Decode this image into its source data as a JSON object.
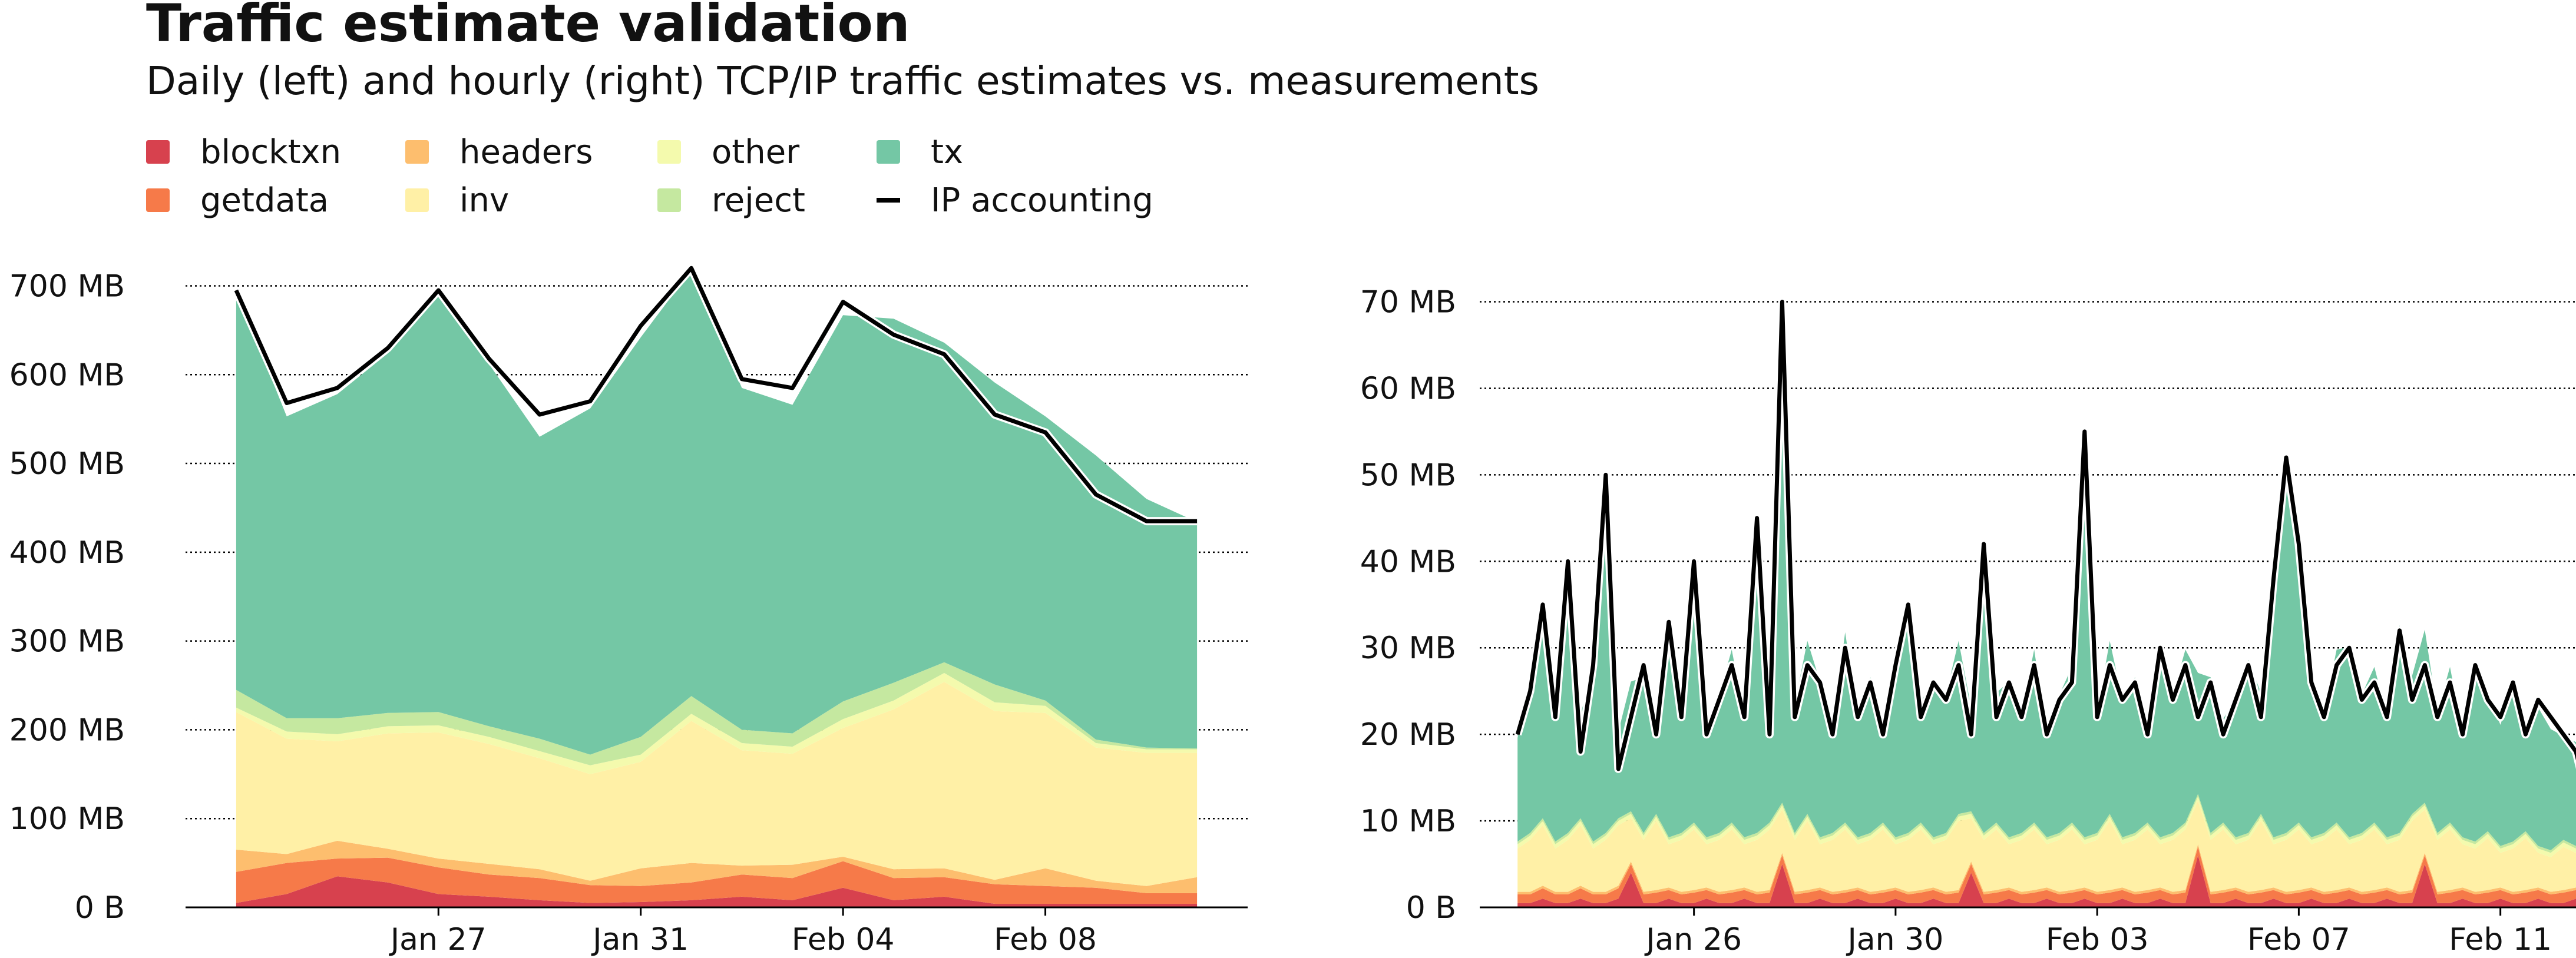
{
  "title": "Traffic estimate validation",
  "subtitle": "Daily (left) and hourly (right) TCP/IP traffic estimates vs. measurements",
  "legend": [
    {
      "label": "blocktxn",
      "color": "#d7414e",
      "kind": "area"
    },
    {
      "label": "headers",
      "color": "#fdbe6e",
      "kind": "area"
    },
    {
      "label": "other",
      "color": "#f4faad",
      "kind": "area"
    },
    {
      "label": "tx",
      "color": "#74c7a5",
      "kind": "area"
    },
    {
      "label": "getdata",
      "color": "#f67a49",
      "kind": "area"
    },
    {
      "label": "inv",
      "color": "#fff0a6",
      "kind": "area"
    },
    {
      "label": "reject",
      "color": "#c5e8a0",
      "kind": "area"
    },
    {
      "label": "IP accounting",
      "color": "#000000",
      "kind": "line"
    }
  ],
  "chart_data": [
    {
      "type": "area",
      "stacked": true,
      "x_type": "date",
      "x": [
        "2024-01-23",
        "2024-01-24",
        "2024-01-25",
        "2024-01-26",
        "2024-01-27",
        "2024-01-28",
        "2024-01-29",
        "2024-01-30",
        "2024-01-31",
        "2024-02-01",
        "2024-02-02",
        "2024-02-03",
        "2024-02-04",
        "2024-02-05",
        "2024-02-06",
        "2024-02-07",
        "2024-02-08",
        "2024-02-09",
        "2024-02-10",
        "2024-02-11"
      ],
      "xlim": [
        "2024-01-22",
        "2024-02-12"
      ],
      "x_ticks": [
        "2024-01-27",
        "2024-01-31",
        "2024-02-04",
        "2024-02-08"
      ],
      "x_tick_labels": [
        "Jan 27",
        "Jan 31",
        "Feb 04",
        "Feb 08"
      ],
      "ylim": [
        0,
        760
      ],
      "y_ticks": [
        0,
        100,
        200,
        300,
        400,
        500,
        600,
        700
      ],
      "y_tick_labels": [
        "0 B",
        "100 MB",
        "200 MB",
        "300 MB",
        "400 MB",
        "500 MB",
        "600 MB",
        "700 MB"
      ],
      "grid": true,
      "y_unit": "MB",
      "series": [
        {
          "name": "blocktxn",
          "color": "#d7414e",
          "values": [
            5,
            15,
            35,
            28,
            15,
            12,
            8,
            5,
            6,
            8,
            12,
            8,
            22,
            8,
            12,
            4,
            4,
            4,
            4,
            4
          ]
        },
        {
          "name": "getdata",
          "color": "#f67a49",
          "values": [
            35,
            35,
            20,
            28,
            30,
            25,
            25,
            20,
            18,
            20,
            25,
            25,
            30,
            25,
            22,
            22,
            20,
            18,
            12,
            12
          ]
        },
        {
          "name": "headers",
          "color": "#fdbe6e",
          "values": [
            25,
            10,
            20,
            10,
            10,
            12,
            10,
            5,
            20,
            22,
            10,
            15,
            5,
            10,
            10,
            5,
            20,
            8,
            8,
            18
          ]
        },
        {
          "name": "inv",
          "color": "#fff0a6",
          "values": [
            155,
            130,
            112,
            130,
            142,
            135,
            125,
            120,
            120,
            160,
            130,
            125,
            145,
            180,
            210,
            190,
            175,
            150,
            150,
            140
          ]
        },
        {
          "name": "other",
          "color": "#f4faad",
          "values": [
            5,
            8,
            8,
            8,
            8,
            8,
            8,
            10,
            8,
            8,
            8,
            8,
            10,
            10,
            10,
            10,
            8,
            5,
            4,
            4
          ]
        },
        {
          "name": "reject",
          "color": "#c5e8a0",
          "values": [
            20,
            15,
            18,
            15,
            15,
            12,
            14,
            12,
            20,
            20,
            15,
            15,
            20,
            20,
            12,
            20,
            6,
            4,
            2,
            1
          ]
        },
        {
          "name": "tx",
          "color": "#74c7a5",
          "values": [
            450,
            340,
            365,
            405,
            470,
            408,
            340,
            390,
            450,
            480,
            385,
            370,
            435,
            410,
            360,
            340,
            320,
            320,
            280,
            255
          ]
        }
      ],
      "line": {
        "name": "IP accounting",
        "color": "#000000",
        "values": [
          695,
          568,
          585,
          630,
          695,
          618,
          555,
          570,
          655,
          720,
          595,
          585,
          682,
          645,
          623,
          555,
          535,
          465,
          435,
          435
        ]
      }
    },
    {
      "type": "area",
      "stacked": true,
      "x_type": "date",
      "x_start": "2024-01-22 12:00",
      "interval_hours": 6,
      "xlim": [
        "2024-01-21 18:00",
        "2024-02-12 12:00"
      ],
      "x_ticks": [
        "2024-01-26",
        "2024-01-30",
        "2024-02-03",
        "2024-02-07",
        "2024-02-11"
      ],
      "x_tick_labels": [
        "Jan 26",
        "Jan 30",
        "Feb 03",
        "Feb 07",
        "Feb 11"
      ],
      "ylim": [
        0,
        78
      ],
      "y_ticks": [
        0,
        10,
        20,
        30,
        40,
        50,
        60,
        70
      ],
      "y_tick_labels": [
        "0 B",
        "10 MB",
        "20 MB",
        "30 MB",
        "40 MB",
        "50 MB",
        "60 MB",
        "70 MB"
      ],
      "grid": true,
      "y_unit": "MB",
      "series": [
        {
          "name": "blocktxn",
          "color": "#d7414e",
          "values": [
            0.5,
            0.5,
            1,
            0.5,
            0.5,
            1,
            0.5,
            0.5,
            1,
            4,
            0.5,
            0.5,
            1,
            0.5,
            0.5,
            1,
            0.5,
            0.5,
            1,
            0.5,
            0.5,
            5,
            0.5,
            0.5,
            1,
            0.5,
            0.5,
            1,
            0.5,
            0.5,
            1,
            0.5,
            0.5,
            1,
            0.5,
            0.5,
            4,
            0.5,
            0.5,
            1,
            0.5,
            0.5,
            1,
            0.5,
            0.5,
            1,
            0.5,
            0.5,
            1,
            0.5,
            0.5,
            1,
            0.5,
            0.5,
            6,
            0.5,
            0.5,
            1,
            0.5,
            0.5,
            1,
            0.5,
            0.5,
            1,
            0.5,
            0.5,
            1,
            0.5,
            0.5,
            1,
            0.5,
            0.5,
            5,
            0.5,
            0.5,
            1,
            0.5,
            0.5,
            1,
            0.5,
            0.5,
            1,
            0.5,
            0.5,
            1,
            0.5
          ]
        },
        {
          "name": "getdata",
          "color": "#f67a49",
          "values": [
            1,
            1,
            1.2,
            1,
            1,
            1.2,
            1,
            1,
            1.2,
            1,
            1,
            1.2,
            1,
            1,
            1.2,
            1,
            1,
            1.2,
            1,
            1,
            1.2,
            1,
            1,
            1.2,
            1,
            1,
            1.2,
            1,
            1,
            1.2,
            1,
            1,
            1.2,
            1,
            1,
            1.2,
            1,
            1,
            1.2,
            1,
            1,
            1.2,
            1,
            1,
            1.2,
            1,
            1,
            1.2,
            1,
            1,
            1.2,
            1,
            1,
            1.2,
            1,
            1,
            1.2,
            1,
            1,
            1.2,
            1,
            1,
            1.2,
            1,
            1,
            1.2,
            1,
            1,
            1.2,
            1,
            1,
            1.2,
            1,
            1,
            1.2,
            1,
            1,
            1.2,
            1,
            1,
            1.2,
            1,
            1,
            1.2,
            1,
            1,
            1.2
          ]
        },
        {
          "name": "headers",
          "color": "#fdbe6e",
          "values": [
            0.3,
            0.3,
            0.3,
            0.3,
            0.3,
            0.3,
            0.3,
            0.3,
            0.3,
            0.3,
            0.3,
            0.3,
            0.3,
            0.3,
            0.3,
            0.3,
            0.3,
            0.3,
            0.3,
            0.3,
            0.3,
            0.3,
            0.3,
            0.3,
            0.3,
            0.3,
            0.3,
            0.3,
            0.3,
            0.3,
            0.3,
            0.3,
            0.3,
            0.3,
            0.3,
            0.3,
            0.3,
            0.3,
            0.3,
            0.3,
            0.3,
            0.3,
            0.3,
            0.3,
            0.3,
            0.3,
            0.3,
            0.3,
            0.3,
            0.3,
            0.3,
            0.3,
            0.3,
            0.3,
            0.3,
            0.3,
            0.3,
            0.3,
            0.3,
            0.3,
            0.3,
            0.3,
            0.3,
            0.3,
            0.3,
            0.3,
            0.3,
            0.3,
            0.3,
            0.3,
            0.3,
            0.3,
            0.3,
            0.3,
            0.3,
            0.3,
            0.3,
            0.3,
            0.3,
            0.3,
            0.3,
            0.3,
            0.3,
            0.3,
            0.3,
            0.3
          ]
        },
        {
          "name": "inv",
          "color": "#fff0a6",
          "values": [
            5,
            6,
            7,
            5,
            6,
            7,
            5,
            6,
            7,
            5,
            6,
            8,
            5,
            6,
            7,
            5,
            6,
            7,
            5,
            6,
            7,
            5,
            6,
            8,
            5,
            6,
            7,
            5,
            6,
            7,
            5,
            6,
            7,
            5,
            6,
            8,
            5,
            6,
            7,
            5,
            6,
            7,
            5,
            6,
            7,
            5,
            6,
            8,
            5,
            6,
            7,
            5,
            6,
            7,
            5,
            6,
            7,
            5,
            6,
            8,
            5,
            6,
            7,
            5,
            6,
            7,
            5,
            6,
            7,
            5,
            6,
            8,
            5,
            6,
            7,
            5,
            5,
            6,
            4,
            5,
            6,
            4,
            4,
            5,
            4,
            4
          ]
        },
        {
          "name": "other",
          "color": "#f4faad",
          "values": [
            0.5,
            0.5,
            0.5,
            0.5,
            0.5,
            0.5,
            0.5,
            0.5,
            0.5,
            0.5,
            0.5,
            0.5,
            0.5,
            0.5,
            0.5,
            0.5,
            0.5,
            0.5,
            0.5,
            0.5,
            0.5,
            0.5,
            0.5,
            0.5,
            0.5,
            0.5,
            0.5,
            0.5,
            0.5,
            0.5,
            0.5,
            0.5,
            0.5,
            0.5,
            0.5,
            0.5,
            0.5,
            0.5,
            0.5,
            0.5,
            0.5,
            0.5,
            0.5,
            0.5,
            0.5,
            0.5,
            0.5,
            0.5,
            0.5,
            0.5,
            0.5,
            0.5,
            0.5,
            0.5,
            0.5,
            0.5,
            0.5,
            0.5,
            0.5,
            0.5,
            0.5,
            0.5,
            0.5,
            0.5,
            0.5,
            0.5,
            0.5,
            0.5,
            0.5,
            0.5,
            0.5,
            0.5,
            0.5,
            0.5,
            0.5,
            0.5,
            0.5,
            0.5,
            0.5,
            0.5,
            0.5,
            0.5,
            0.5,
            0.5,
            0.5,
            0.5
          ]
        },
        {
          "name": "reject",
          "color": "#c5e8a0",
          "values": [
            0.3,
            0.3,
            0.3,
            0.3,
            0.3,
            0.3,
            0.3,
            0.3,
            0.3,
            0.3,
            0.3,
            0.3,
            0.3,
            0.3,
            0.3,
            0.3,
            0.3,
            0.3,
            0.3,
            0.3,
            0.3,
            0.3,
            0.3,
            0.3,
            0.3,
            0.3,
            0.3,
            0.3,
            0.3,
            0.3,
            0.3,
            0.3,
            0.3,
            0.3,
            0.3,
            0.3,
            0.3,
            0.3,
            0.3,
            0.3,
            0.3,
            0.3,
            0.3,
            0.3,
            0.3,
            0.3,
            0.3,
            0.3,
            0.3,
            0.3,
            0.3,
            0.3,
            0.3,
            0.3,
            0.3,
            0.3,
            0.3,
            0.3,
            0.3,
            0.3,
            0.3,
            0.3,
            0.3,
            0.3,
            0.3,
            0.3,
            0.3,
            0.3,
            0.3,
            0.3,
            0.3,
            0.3,
            0.3,
            0.3,
            0.3,
            0.3,
            0.3,
            0.3,
            0.3,
            0.3,
            0.3,
            0.3,
            0.3,
            0.3,
            0.3,
            0.3
          ]
        },
        {
          "name": "tx",
          "color": "#74c7a5",
          "values": [
            12,
            18,
            25,
            14,
            30,
            12,
            20,
            40,
            10,
            15,
            18,
            12,
            25,
            15,
            30,
            12,
            16,
            20,
            14,
            35,
            12,
            55,
            15,
            20,
            18,
            12,
            22,
            14,
            18,
            12,
            20,
            25,
            14,
            18,
            16,
            20,
            12,
            30,
            15,
            18,
            14,
            20,
            12,
            16,
            18,
            40,
            14,
            20,
            16,
            18,
            12,
            22,
            16,
            20,
            14,
            18,
            12,
            16,
            20,
            14,
            28,
            40,
            30,
            18,
            14,
            20,
            22,
            16,
            18,
            14,
            24,
            16,
            20,
            14,
            18,
            12,
            20,
            16,
            14,
            18,
            12,
            16,
            14,
            12,
            12,
            8
          ]
        }
      ],
      "line": {
        "name": "IP accounting",
        "color": "#000000",
        "values": [
          20,
          25,
          35,
          22,
          40,
          18,
          28,
          50,
          16,
          22,
          28,
          20,
          33,
          22,
          40,
          20,
          24,
          28,
          22,
          45,
          20,
          70,
          22,
          28,
          26,
          20,
          30,
          22,
          26,
          20,
          28,
          35,
          22,
          26,
          24,
          28,
          20,
          42,
          22,
          26,
          22,
          28,
          20,
          24,
          26,
          55,
          22,
          28,
          24,
          26,
          20,
          30,
          24,
          28,
          22,
          26,
          20,
          24,
          28,
          22,
          38,
          52,
          42,
          26,
          22,
          28,
          30,
          24,
          26,
          22,
          32,
          24,
          28,
          22,
          26,
          20,
          28,
          24,
          22,
          26,
          20,
          24,
          22,
          20,
          18,
          12
        ]
      }
    }
  ]
}
